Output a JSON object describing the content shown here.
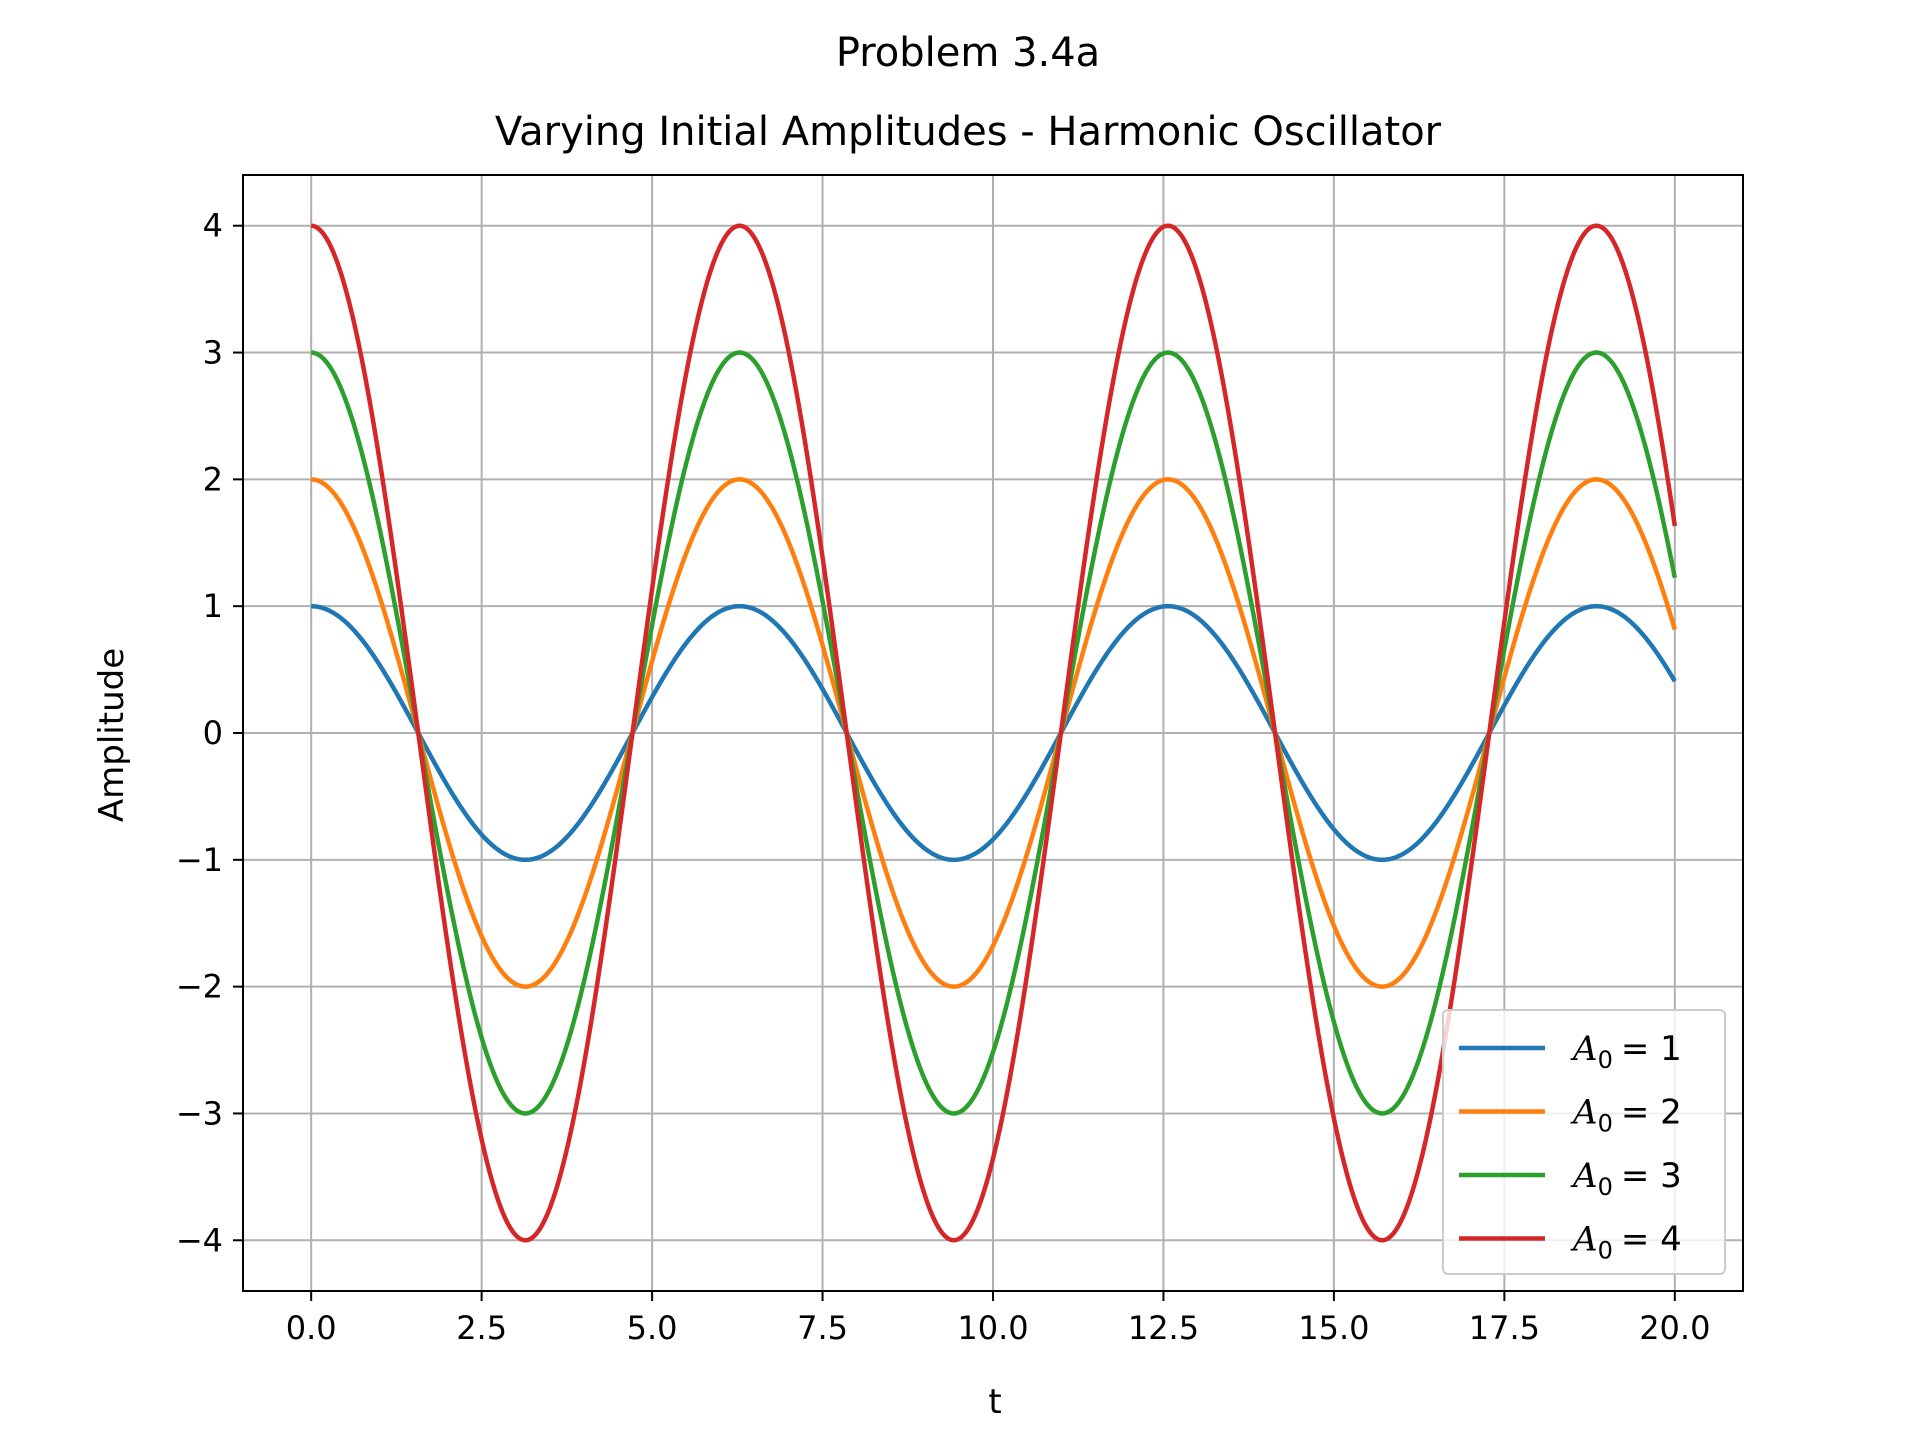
{
  "chart_data": {
    "type": "line",
    "suptitle": "Problem 3.4a",
    "title": "Varying Initial Amplitudes - Harmonic Oscillator",
    "xlabel": "t",
    "ylabel": "Amplitude",
    "xlim": [
      -1.0,
      21.0
    ],
    "ylim": [
      -4.4,
      4.4
    ],
    "xticks": [
      0.0,
      2.5,
      5.0,
      7.5,
      10.0,
      12.5,
      15.0,
      17.5,
      20.0
    ],
    "xtick_labels": [
      "0.0",
      "2.5",
      "5.0",
      "7.5",
      "10.0",
      "12.5",
      "15.0",
      "17.5",
      "20.0"
    ],
    "yticks": [
      -4,
      -3,
      -2,
      -1,
      0,
      1,
      2,
      3,
      4
    ],
    "ytick_labels": [
      "−4",
      "−3",
      "−2",
      "−1",
      "0",
      "1",
      "2",
      "3",
      "4"
    ],
    "grid": true,
    "legend_position": "lower-right",
    "function": "A0 * cos(t)",
    "t_range": [
      0,
      20
    ],
    "series": [
      {
        "name": "A0 = 1",
        "label_base": "A",
        "label_sub": "0",
        "label_value": "= 1",
        "amplitude": 1,
        "color": "#1f77b4"
      },
      {
        "name": "A0 = 2",
        "label_base": "A",
        "label_sub": "0",
        "label_value": "= 2",
        "amplitude": 2,
        "color": "#ff7f0e"
      },
      {
        "name": "A0 = 3",
        "label_base": "A",
        "label_sub": "0",
        "label_value": "= 3",
        "amplitude": 3,
        "color": "#2ca02c"
      },
      {
        "name": "A0 = 4",
        "label_base": "A",
        "label_sub": "0",
        "label_value": "= 4",
        "amplitude": 4,
        "color": "#d62728"
      }
    ]
  }
}
